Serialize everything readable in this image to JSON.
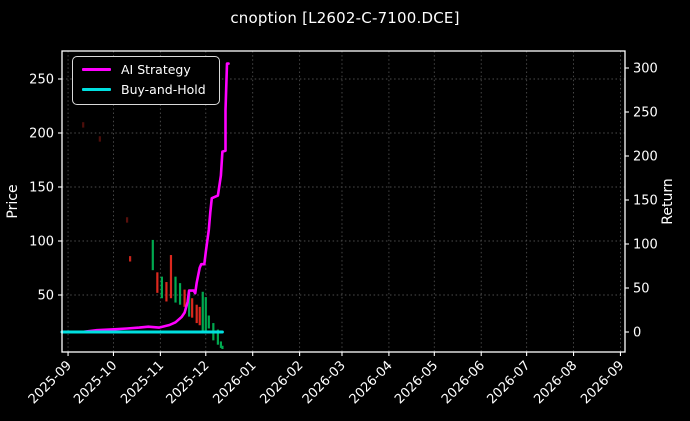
{
  "chart_data": {
    "type": "line+bar financial backtest chart",
    "title": "cnoption [L2602-C-7100.DCE]",
    "background_color": "#000000",
    "text_color": "#ffffff",
    "spine_color": "#ffffff",
    "grid": {
      "visible": true,
      "color": "#4d4d4d",
      "style": "dotted"
    },
    "x_axis": {
      "tick_labels": [
        "2025-09",
        "2025-10",
        "2025-11",
        "2025-12",
        "2026-01",
        "2026-02",
        "2026-03",
        "2026-04",
        "2026-05",
        "2026-06",
        "2026-07",
        "2026-08",
        "2026-09"
      ],
      "range_days": [
        "2025-08-28",
        "2026-09-04"
      ],
      "label_rotation_deg": 45
    },
    "y_left": {
      "label": "Price",
      "ticks": [
        50,
        100,
        150,
        200,
        250
      ],
      "approx_range": [
        -3,
        276
      ]
    },
    "y_right": {
      "label": "Return",
      "ticks": [
        0,
        50,
        100,
        150,
        200,
        250,
        300
      ],
      "approx_range": [
        -23,
        319
      ]
    },
    "legend": {
      "position": "upper-left",
      "entries": [
        {
          "label": "AI Strategy",
          "color": "#ff00ff"
        },
        {
          "label": "Buy-and-Hold",
          "color": "#00e0e0"
        }
      ]
    },
    "series": [
      {
        "name": "AI Strategy",
        "type": "line",
        "axis": "right",
        "color": "#ff00ff",
        "width": 2.6,
        "points": [
          [
            "2025-08-28",
            0
          ],
          [
            "2025-09-10",
            0
          ],
          [
            "2025-09-20",
            2
          ],
          [
            "2025-09-30",
            3
          ],
          [
            "2025-10-10",
            4
          ],
          [
            "2025-10-18",
            5
          ],
          [
            "2025-10-24",
            6
          ],
          [
            "2025-10-31",
            5
          ],
          [
            "2025-11-07",
            8
          ],
          [
            "2025-11-11",
            11
          ],
          [
            "2025-11-15",
            17
          ],
          [
            "2025-11-17",
            22
          ],
          [
            "2025-11-19",
            34
          ],
          [
            "2025-11-20",
            47
          ],
          [
            "2025-11-23",
            47
          ],
          [
            "2025-11-24",
            44
          ],
          [
            "2025-11-25",
            56
          ],
          [
            "2025-11-27",
            73
          ],
          [
            "2025-11-28",
            77
          ],
          [
            "2025-11-30",
            77
          ],
          [
            "2025-12-01",
            91
          ],
          [
            "2025-12-03",
            116
          ],
          [
            "2025-12-04",
            136
          ],
          [
            "2025-12-05",
            152
          ],
          [
            "2025-12-09",
            155
          ],
          [
            "2025-12-11",
            178
          ],
          [
            "2025-12-12",
            205
          ],
          [
            "2025-12-14",
            206
          ],
          [
            "2025-12-14",
            252
          ],
          [
            "2025-12-15",
            305
          ],
          [
            "2025-12-16",
            305
          ]
        ]
      },
      {
        "name": "Buy-and-Hold",
        "type": "line",
        "axis": "right",
        "color": "#00e0e0",
        "width": 3,
        "points": [
          [
            "2025-08-28",
            0
          ],
          [
            "2025-12-12",
            0
          ]
        ]
      },
      {
        "name": "price-bars",
        "type": "bar",
        "axis": "left",
        "up_color": "#00a94f",
        "down_color": "#dc281e",
        "bar_width": 2.2,
        "bars": [
          [
            "2025-09-11",
            205,
            210,
            "d",
            0.35
          ],
          [
            "2025-09-22",
            192,
            197,
            "d",
            0.35
          ],
          [
            "2025-10-10",
            117,
            122,
            "d",
            0.4
          ],
          [
            "2025-10-12",
            81,
            86,
            "d",
            0.9
          ],
          [
            "2025-10-27",
            73,
            101,
            "u",
            1
          ],
          [
            "2025-10-30",
            52,
            71,
            "d",
            1
          ],
          [
            "2025-11-02",
            47,
            67,
            "u",
            1
          ],
          [
            "2025-11-05",
            44,
            62,
            "d",
            1
          ],
          [
            "2025-11-08",
            47,
            87,
            "d",
            1
          ],
          [
            "2025-11-11",
            43,
            67,
            "u",
            1
          ],
          [
            "2025-11-14",
            41,
            61,
            "u",
            1
          ],
          [
            "2025-11-17",
            39,
            55,
            "d",
            1
          ],
          [
            "2025-11-20",
            30,
            52,
            "u",
            1
          ],
          [
            "2025-11-22",
            29,
            47,
            "d",
            1
          ],
          [
            "2025-11-25",
            24,
            41,
            "d",
            1
          ],
          [
            "2025-11-27",
            22,
            39,
            "d",
            1
          ],
          [
            "2025-11-29",
            15,
            53,
            "u",
            1
          ],
          [
            "2025-12-01",
            15,
            48,
            "u",
            1
          ],
          [
            "2025-12-03",
            19,
            31,
            "u",
            1
          ],
          [
            "2025-12-06",
            8,
            24,
            "u",
            1
          ],
          [
            "2025-12-09",
            4,
            18,
            "u",
            1
          ],
          [
            "2025-12-11",
            1,
            7,
            "u",
            1
          ],
          [
            "2025-12-12",
            0,
            3,
            "u",
            1
          ]
        ]
      }
    ]
  }
}
